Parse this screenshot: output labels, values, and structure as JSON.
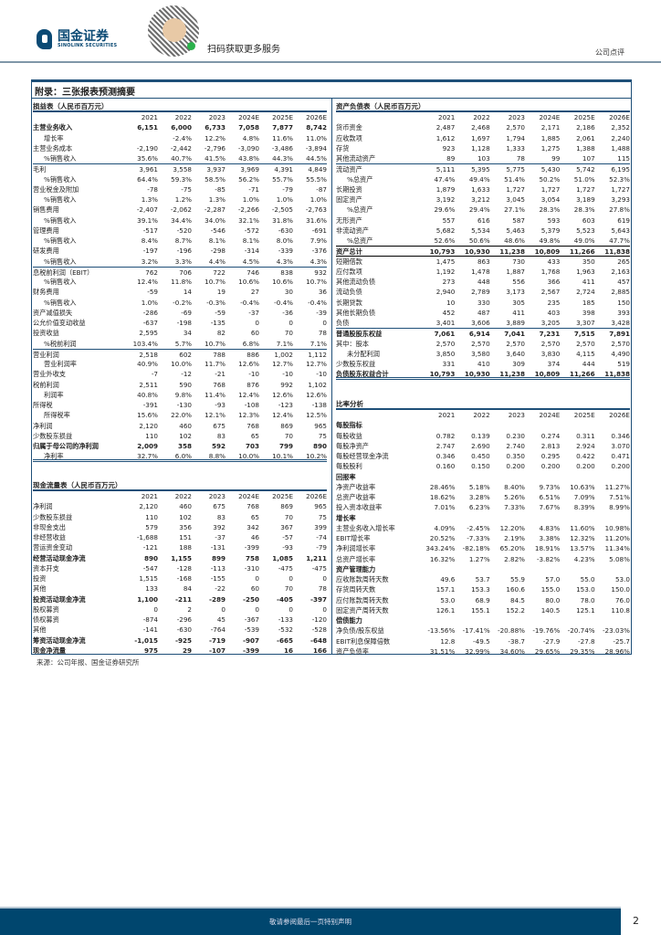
{
  "header": {
    "logo_cn": "国金证券",
    "logo_en": "SINOLINK SECURITIES",
    "qr_text": "扫码获取更多服务",
    "doc_type": "公司点评"
  },
  "title": "附录：三张报表预测摘要",
  "years": [
    "2021",
    "2022",
    "2023",
    "2024E",
    "2025E",
    "2026E"
  ],
  "income": {
    "title": "损益表（人民币百万元）",
    "rows": [
      {
        "l": "主营业务收入",
        "v": [
          "6,151",
          "6,000",
          "6,733",
          "7,058",
          "7,877",
          "8,742"
        ],
        "s": "b"
      },
      {
        "l": "增长率",
        "v": [
          "",
          "-2.4%",
          "12.2%",
          "4.8%",
          "11.6%",
          "11.0%"
        ],
        "s": "ind"
      },
      {
        "l": "主营业务成本",
        "v": [
          "-2,190",
          "-2,442",
          "-2,796",
          "-3,090",
          "-3,486",
          "-3,894"
        ]
      },
      {
        "l": "%销售收入",
        "v": [
          "35.6%",
          "40.7%",
          "41.5%",
          "43.8%",
          "44.3%",
          "44.5%"
        ],
        "s": "ind"
      },
      {
        "l": "毛利",
        "v": [
          "3,961",
          "3,558",
          "3,937",
          "3,969",
          "4,391",
          "4,849"
        ],
        "s": "sep"
      },
      {
        "l": "%销售收入",
        "v": [
          "64.4%",
          "59.3%",
          "58.5%",
          "56.2%",
          "55.7%",
          "55.5%"
        ],
        "s": "ind"
      },
      {
        "l": "营业税金及附加",
        "v": [
          "-78",
          "-75",
          "-85",
          "-71",
          "-79",
          "-87"
        ]
      },
      {
        "l": "%销售收入",
        "v": [
          "1.3%",
          "1.2%",
          "1.3%",
          "1.0%",
          "1.0%",
          "1.0%"
        ],
        "s": "ind"
      },
      {
        "l": "销售费用",
        "v": [
          "-2,407",
          "-2,062",
          "-2,287",
          "-2,266",
          "-2,505",
          "-2,763"
        ]
      },
      {
        "l": "%销售收入",
        "v": [
          "39.1%",
          "34.4%",
          "34.0%",
          "32.1%",
          "31.8%",
          "31.6%"
        ],
        "s": "ind"
      },
      {
        "l": "管理费用",
        "v": [
          "-517",
          "-520",
          "-546",
          "-572",
          "-630",
          "-691"
        ]
      },
      {
        "l": "%销售收入",
        "v": [
          "8.4%",
          "8.7%",
          "8.1%",
          "8.1%",
          "8.0%",
          "7.9%"
        ],
        "s": "ind"
      },
      {
        "l": "研发费用",
        "v": [
          "-197",
          "-196",
          "-298",
          "-314",
          "-339",
          "-376"
        ]
      },
      {
        "l": "%销售收入",
        "v": [
          "3.2%",
          "3.3%",
          "4.4%",
          "4.5%",
          "4.3%",
          "4.3%"
        ],
        "s": "ind"
      },
      {
        "l": "息税前利润（EBIT）",
        "v": [
          "762",
          "706",
          "722",
          "746",
          "838",
          "932"
        ],
        "s": "sep"
      },
      {
        "l": "%销售收入",
        "v": [
          "12.4%",
          "11.8%",
          "10.7%",
          "10.6%",
          "10.6%",
          "10.7%"
        ],
        "s": "ind"
      },
      {
        "l": "财务费用",
        "v": [
          "-59",
          "14",
          "19",
          "27",
          "30",
          "36"
        ]
      },
      {
        "l": "%销售收入",
        "v": [
          "1.0%",
          "-0.2%",
          "-0.3%",
          "-0.4%",
          "-0.4%",
          "-0.4%"
        ],
        "s": "ind"
      },
      {
        "l": "资产减值损失",
        "v": [
          "-286",
          "-69",
          "-59",
          "-37",
          "-36",
          "-39"
        ]
      },
      {
        "l": "公允价值变动收益",
        "v": [
          "-637",
          "-198",
          "-135",
          "0",
          "0",
          "0"
        ]
      },
      {
        "l": "投资收益",
        "v": [
          "2,595",
          "34",
          "82",
          "60",
          "70",
          "78"
        ]
      },
      {
        "l": "%税前利润",
        "v": [
          "103.4%",
          "5.7%",
          "10.7%",
          "6.8%",
          "7.1%",
          "7.1%"
        ],
        "s": "ind"
      },
      {
        "l": "营业利润",
        "v": [
          "2,518",
          "602",
          "788",
          "886",
          "1,002",
          "1,112"
        ],
        "s": "sep"
      },
      {
        "l": "营业利润率",
        "v": [
          "40.9%",
          "10.0%",
          "11.7%",
          "12.6%",
          "12.7%",
          "12.7%"
        ],
        "s": "ind"
      },
      {
        "l": "营业外收支",
        "v": [
          "-7",
          "-12",
          "-21",
          "-10",
          "-10",
          "-10"
        ]
      },
      {
        "l": "税前利润",
        "v": [
          "2,511",
          "590",
          "768",
          "876",
          "992",
          "1,102"
        ]
      },
      {
        "l": "利润率",
        "v": [
          "40.8%",
          "9.8%",
          "11.4%",
          "12.4%",
          "12.6%",
          "12.6%"
        ],
        "s": "ind"
      },
      {
        "l": "所得税",
        "v": [
          "-391",
          "-130",
          "-93",
          "-108",
          "-123",
          "-138"
        ]
      },
      {
        "l": "所得税率",
        "v": [
          "15.6%",
          "22.0%",
          "12.1%",
          "12.3%",
          "12.4%",
          "12.5%"
        ],
        "s": "ind"
      },
      {
        "l": "净利润",
        "v": [
          "2,120",
          "460",
          "675",
          "768",
          "869",
          "965"
        ]
      },
      {
        "l": "少数股东损益",
        "v": [
          "110",
          "102",
          "83",
          "65",
          "70",
          "75"
        ]
      },
      {
        "l": "归属于母公司的净利润",
        "v": [
          "2,009",
          "358",
          "592",
          "703",
          "799",
          "890"
        ],
        "s": "b"
      },
      {
        "l": "净利率",
        "v": [
          "32.7%",
          "6.0%",
          "8.8%",
          "10.0%",
          "10.1%",
          "10.2%"
        ],
        "s": "ind dbl"
      }
    ]
  },
  "cashflow": {
    "title": "现金流量表（人民币百万元）",
    "rows": [
      {
        "l": "净利润",
        "v": [
          "2,120",
          "460",
          "675",
          "768",
          "869",
          "965"
        ]
      },
      {
        "l": "少数股东损益",
        "v": [
          "110",
          "102",
          "83",
          "65",
          "70",
          "75"
        ]
      },
      {
        "l": "非现金支出",
        "v": [
          "579",
          "356",
          "392",
          "342",
          "367",
          "399"
        ]
      },
      {
        "l": "非经营收益",
        "v": [
          "-1,688",
          "151",
          "-37",
          "46",
          "-57",
          "-74"
        ]
      },
      {
        "l": "营运资金变动",
        "v": [
          "-121",
          "188",
          "-131",
          "-399",
          "-93",
          "-79"
        ]
      },
      {
        "l": "经营活动现金净流",
        "v": [
          "890",
          "1,155",
          "899",
          "758",
          "1,085",
          "1,211"
        ],
        "s": "b"
      },
      {
        "l": "资本开支",
        "v": [
          "-547",
          "-128",
          "-113",
          "-310",
          "-475",
          "-475"
        ]
      },
      {
        "l": "投资",
        "v": [
          "1,515",
          "-168",
          "-155",
          "0",
          "0",
          "0"
        ]
      },
      {
        "l": "其他",
        "v": [
          "133",
          "84",
          "-22",
          "60",
          "70",
          "78"
        ]
      },
      {
        "l": "投资活动现金净流",
        "v": [
          "1,100",
          "-211",
          "-289",
          "-250",
          "-405",
          "-397"
        ],
        "s": "b"
      },
      {
        "l": "股权募资",
        "v": [
          "0",
          "2",
          "0",
          "0",
          "0",
          "0"
        ]
      },
      {
        "l": "债权募资",
        "v": [
          "-874",
          "-296",
          "45",
          "-367",
          "-133",
          "-120"
        ]
      },
      {
        "l": "其他",
        "v": [
          "-141",
          "-630",
          "-764",
          "-539",
          "-532",
          "-528"
        ]
      },
      {
        "l": "筹资活动现金净流",
        "v": [
          "-1,015",
          "-925",
          "-719",
          "-907",
          "-665",
          "-648"
        ],
        "s": "b"
      },
      {
        "l": "现金净流量",
        "v": [
          "975",
          "29",
          "-107",
          "-399",
          "16",
          "166"
        ],
        "s": "b"
      }
    ]
  },
  "balance": {
    "title": "资产负债表（人民币百万元）",
    "rows": [
      {
        "l": "货币资金",
        "v": [
          "2,487",
          "2,468",
          "2,570",
          "2,171",
          "2,186",
          "2,352"
        ]
      },
      {
        "l": "应收款项",
        "v": [
          "1,612",
          "1,697",
          "1,794",
          "1,885",
          "2,061",
          "2,240"
        ]
      },
      {
        "l": "存货",
        "v": [
          "923",
          "1,128",
          "1,333",
          "1,275",
          "1,388",
          "1,488"
        ]
      },
      {
        "l": "其他流动资产",
        "v": [
          "89",
          "103",
          "78",
          "99",
          "107",
          "115"
        ]
      },
      {
        "l": "流动资产",
        "v": [
          "5,111",
          "5,395",
          "5,775",
          "5,430",
          "5,742",
          "6,195"
        ],
        "s": "sep"
      },
      {
        "l": "%总资产",
        "v": [
          "47.4%",
          "49.4%",
          "51.4%",
          "50.2%",
          "51.0%",
          "52.3%"
        ],
        "s": "ind"
      },
      {
        "l": "长期投资",
        "v": [
          "1,879",
          "1,633",
          "1,727",
          "1,727",
          "1,727",
          "1,727"
        ]
      },
      {
        "l": "固定资产",
        "v": [
          "3,192",
          "3,212",
          "3,045",
          "3,054",
          "3,189",
          "3,293"
        ]
      },
      {
        "l": "%总资产",
        "v": [
          "29.6%",
          "29.4%",
          "27.1%",
          "28.3%",
          "28.3%",
          "27.8%"
        ],
        "s": "ind"
      },
      {
        "l": "无形资产",
        "v": [
          "557",
          "616",
          "587",
          "593",
          "603",
          "619"
        ]
      },
      {
        "l": "非流动资产",
        "v": [
          "5,682",
          "5,534",
          "5,463",
          "5,379",
          "5,523",
          "5,643"
        ]
      },
      {
        "l": "%总资产",
        "v": [
          "52.6%",
          "50.6%",
          "48.6%",
          "49.8%",
          "49.0%",
          "47.7%"
        ],
        "s": "ind"
      },
      {
        "l": "资产总计",
        "v": [
          "10,793",
          "10,930",
          "11,238",
          "10,809",
          "11,266",
          "11,838"
        ],
        "s": "b blk"
      },
      {
        "l": "短期借款",
        "v": [
          "1,475",
          "863",
          "730",
          "433",
          "350",
          "265"
        ]
      },
      {
        "l": "应付款项",
        "v": [
          "1,192",
          "1,478",
          "1,887",
          "1,768",
          "1,963",
          "2,163"
        ]
      },
      {
        "l": "其他流动负债",
        "v": [
          "273",
          "448",
          "556",
          "366",
          "411",
          "457"
        ]
      },
      {
        "l": "流动负债",
        "v": [
          "2,940",
          "2,789",
          "3,173",
          "2,567",
          "2,724",
          "2,885"
        ]
      },
      {
        "l": "长期贷款",
        "v": [
          "10",
          "330",
          "305",
          "235",
          "185",
          "150"
        ]
      },
      {
        "l": "其他长期负债",
        "v": [
          "452",
          "487",
          "411",
          "403",
          "398",
          "393"
        ]
      },
      {
        "l": "负债",
        "v": [
          "3,401",
          "3,606",
          "3,889",
          "3,205",
          "3,307",
          "3,428"
        ]
      },
      {
        "l": "普通股股东权益",
        "v": [
          "7,061",
          "6,914",
          "7,041",
          "7,231",
          "7,515",
          "7,891"
        ],
        "s": "b sep"
      },
      {
        "l": "其中：股本",
        "v": [
          "2,570",
          "2,570",
          "2,570",
          "2,570",
          "2,570",
          "2,570"
        ]
      },
      {
        "l": "未分配利润",
        "v": [
          "3,850",
          "3,580",
          "3,640",
          "3,830",
          "4,115",
          "4,490"
        ],
        "s": "ind"
      },
      {
        "l": "少数股东权益",
        "v": [
          "331",
          "410",
          "309",
          "374",
          "444",
          "519"
        ]
      },
      {
        "l": "负债股东权益合计",
        "v": [
          "10,793",
          "10,930",
          "11,238",
          "10,809",
          "11,266",
          "11,838"
        ],
        "s": "b dbl"
      }
    ]
  },
  "ratios": {
    "title": "比率分析",
    "rows": [
      {
        "l": "每股指标",
        "v": [],
        "s": "sec"
      },
      {
        "l": "每股收益",
        "v": [
          "0.782",
          "0.139",
          "0.230",
          "0.274",
          "0.311",
          "0.346"
        ]
      },
      {
        "l": "每股净资产",
        "v": [
          "2.747",
          "2.690",
          "2.740",
          "2.813",
          "2.924",
          "3.070"
        ]
      },
      {
        "l": "每股经营现金净流",
        "v": [
          "0.346",
          "0.450",
          "0.350",
          "0.295",
          "0.422",
          "0.471"
        ]
      },
      {
        "l": "每股股利",
        "v": [
          "0.160",
          "0.150",
          "0.200",
          "0.200",
          "0.200",
          "0.200"
        ]
      },
      {
        "l": "回报率",
        "v": [],
        "s": "sec"
      },
      {
        "l": "净资产收益率",
        "v": [
          "28.46%",
          "5.18%",
          "8.40%",
          "9.73%",
          "10.63%",
          "11.27%"
        ]
      },
      {
        "l": "总资产收益率",
        "v": [
          "18.62%",
          "3.28%",
          "5.26%",
          "6.51%",
          "7.09%",
          "7.51%"
        ]
      },
      {
        "l": "投入资本收益率",
        "v": [
          "7.01%",
          "6.23%",
          "7.33%",
          "7.67%",
          "8.39%",
          "8.99%"
        ]
      },
      {
        "l": "增长率",
        "v": [],
        "s": "sec"
      },
      {
        "l": "主营业务收入增长率",
        "v": [
          "4.09%",
          "-2.45%",
          "12.20%",
          "4.83%",
          "11.60%",
          "10.98%"
        ]
      },
      {
        "l": "EBIT增长率",
        "v": [
          "20.52%",
          "-7.33%",
          "2.19%",
          "3.38%",
          "12.32%",
          "11.20%"
        ]
      },
      {
        "l": "净利润增长率",
        "v": [
          "343.24%",
          "-82.18%",
          "65.20%",
          "18.91%",
          "13.57%",
          "11.34%"
        ]
      },
      {
        "l": "总资产增长率",
        "v": [
          "16.32%",
          "1.27%",
          "2.82%",
          "-3.82%",
          "4.23%",
          "5.08%"
        ]
      },
      {
        "l": "资产管理能力",
        "v": [],
        "s": "sec"
      },
      {
        "l": "应收账款周转天数",
        "v": [
          "49.6",
          "53.7",
          "55.9",
          "57.0",
          "55.0",
          "53.0"
        ]
      },
      {
        "l": "存货周转天数",
        "v": [
          "157.1",
          "153.3",
          "160.6",
          "155.0",
          "153.0",
          "150.0"
        ]
      },
      {
        "l": "应付账款周转天数",
        "v": [
          "53.0",
          "68.9",
          "84.5",
          "80.0",
          "78.0",
          "76.0"
        ]
      },
      {
        "l": "固定资产周转天数",
        "v": [
          "126.1",
          "155.1",
          "152.2",
          "140.5",
          "125.1",
          "110.8"
        ]
      },
      {
        "l": "偿债能力",
        "v": [],
        "s": "sec"
      },
      {
        "l": "净负债/股东权益",
        "v": [
          "-13.56%",
          "-17.41%",
          "-20.88%",
          "-19.76%",
          "-20.74%",
          "-23.03%"
        ]
      },
      {
        "l": "EBIT利息保障倍数",
        "v": [
          "12.8",
          "-49.5",
          "-38.7",
          "-27.9",
          "-27.8",
          "-25.7"
        ]
      },
      {
        "l": "资产负债率",
        "v": [
          "31.51%",
          "32.99%",
          "34.60%",
          "29.65%",
          "29.35%",
          "28.96%"
        ]
      }
    ]
  },
  "source": "来源：公司年报、国金证券研究所",
  "footer": {
    "notice": "敬请参阅最后一页特别声明",
    "page": "2"
  }
}
